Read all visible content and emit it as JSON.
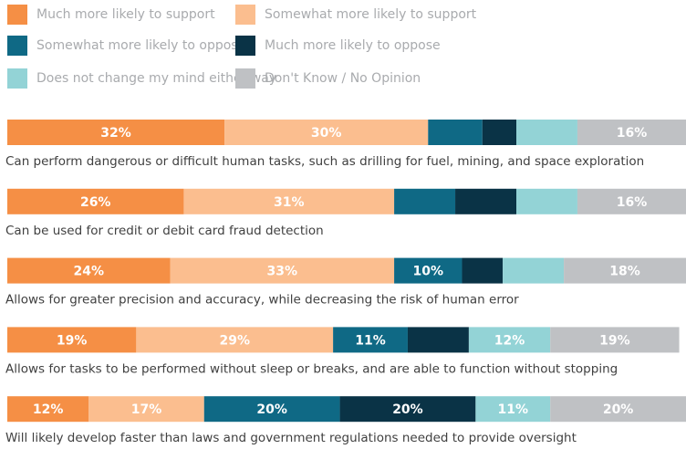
{
  "chart_data": {
    "type": "stacked-bar-horizontal",
    "categories": [
      "Can perform dangerous or difficult human tasks, such as drilling for fuel, mining, and space exploration",
      "Can be used for credit or debit card fraud detection",
      "Allows for greater precision and accuracy, while decreasing the risk of human error",
      "Allows for tasks to be performed without sleep or breaks, and are able to function without stopping",
      "Will likely develop faster than laws and government regulations needed to provide oversight"
    ],
    "xlim": [
      0,
      100
    ],
    "series": [
      {
        "name": "Much more likely to support",
        "color": "#f58f45",
        "values": [
          32,
          26,
          24,
          19,
          12
        ],
        "value_labels": [
          "32%",
          "26%",
          "24%",
          "19%",
          "12%"
        ]
      },
      {
        "name": "Somewhat more likely to support",
        "color": "#fbbe8f",
        "values": [
          30,
          31,
          33,
          29,
          17
        ],
        "value_labels": [
          "30%",
          "31%",
          "33%",
          "29%",
          "17%"
        ]
      },
      {
        "name": "Somewhat more likely to oppose",
        "color": "#0f6985",
        "values": [
          8,
          9,
          10,
          11,
          20
        ],
        "value_labels": [
          null,
          null,
          "10%",
          "11%",
          "20%"
        ]
      },
      {
        "name": "Much more likely to oppose",
        "color": "#0a3346",
        "values": [
          5,
          9,
          6,
          9,
          20
        ],
        "value_labels": [
          null,
          null,
          null,
          null,
          "20%"
        ]
      },
      {
        "name": "Does not change my mind either way",
        "color": "#93d3d6",
        "values": [
          9,
          9,
          9,
          12,
          11
        ],
        "value_labels": [
          null,
          null,
          null,
          "12%",
          "11%"
        ]
      },
      {
        "name": "Don't Know / No Opinion",
        "color": "#bfc1c4",
        "values": [
          16,
          16,
          18,
          19,
          20
        ],
        "value_labels": [
          "16%",
          "16%",
          "18%",
          "19%",
          "20%"
        ]
      }
    ]
  }
}
